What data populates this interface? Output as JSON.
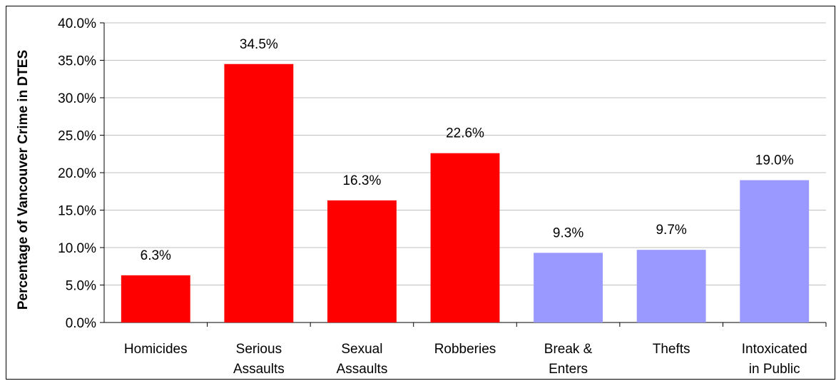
{
  "chart_data": {
    "type": "bar",
    "title": "",
    "xlabel": "",
    "ylabel": "Percentage of Vancouver Crime in DTES",
    "ylim": [
      0,
      40
    ],
    "yticks": [
      "0.0%",
      "5.0%",
      "10.0%",
      "15.0%",
      "20.0%",
      "25.0%",
      "30.0%",
      "35.0%",
      "40.0%"
    ],
    "ytick_values": [
      0,
      5,
      10,
      15,
      20,
      25,
      30,
      35,
      40
    ],
    "grid": true,
    "categories": [
      [
        "Homicides"
      ],
      [
        "Serious",
        "Assaults"
      ],
      [
        "Sexual",
        "Assaults"
      ],
      [
        "Robberies"
      ],
      [
        "Break &",
        "Enters"
      ],
      [
        "Thefts"
      ],
      [
        "Intoxicated",
        "in Public"
      ]
    ],
    "values": [
      6.3,
      34.5,
      16.3,
      22.6,
      9.3,
      9.7,
      19.0
    ],
    "value_labels": [
      "6.3%",
      "34.5%",
      "16.3%",
      "22.6%",
      "9.3%",
      "9.7%",
      "19.0%"
    ],
    "bar_colors": [
      "#ff0000",
      "#ff0000",
      "#ff0000",
      "#ff0000",
      "#9999ff",
      "#9999ff",
      "#9999ff"
    ]
  }
}
